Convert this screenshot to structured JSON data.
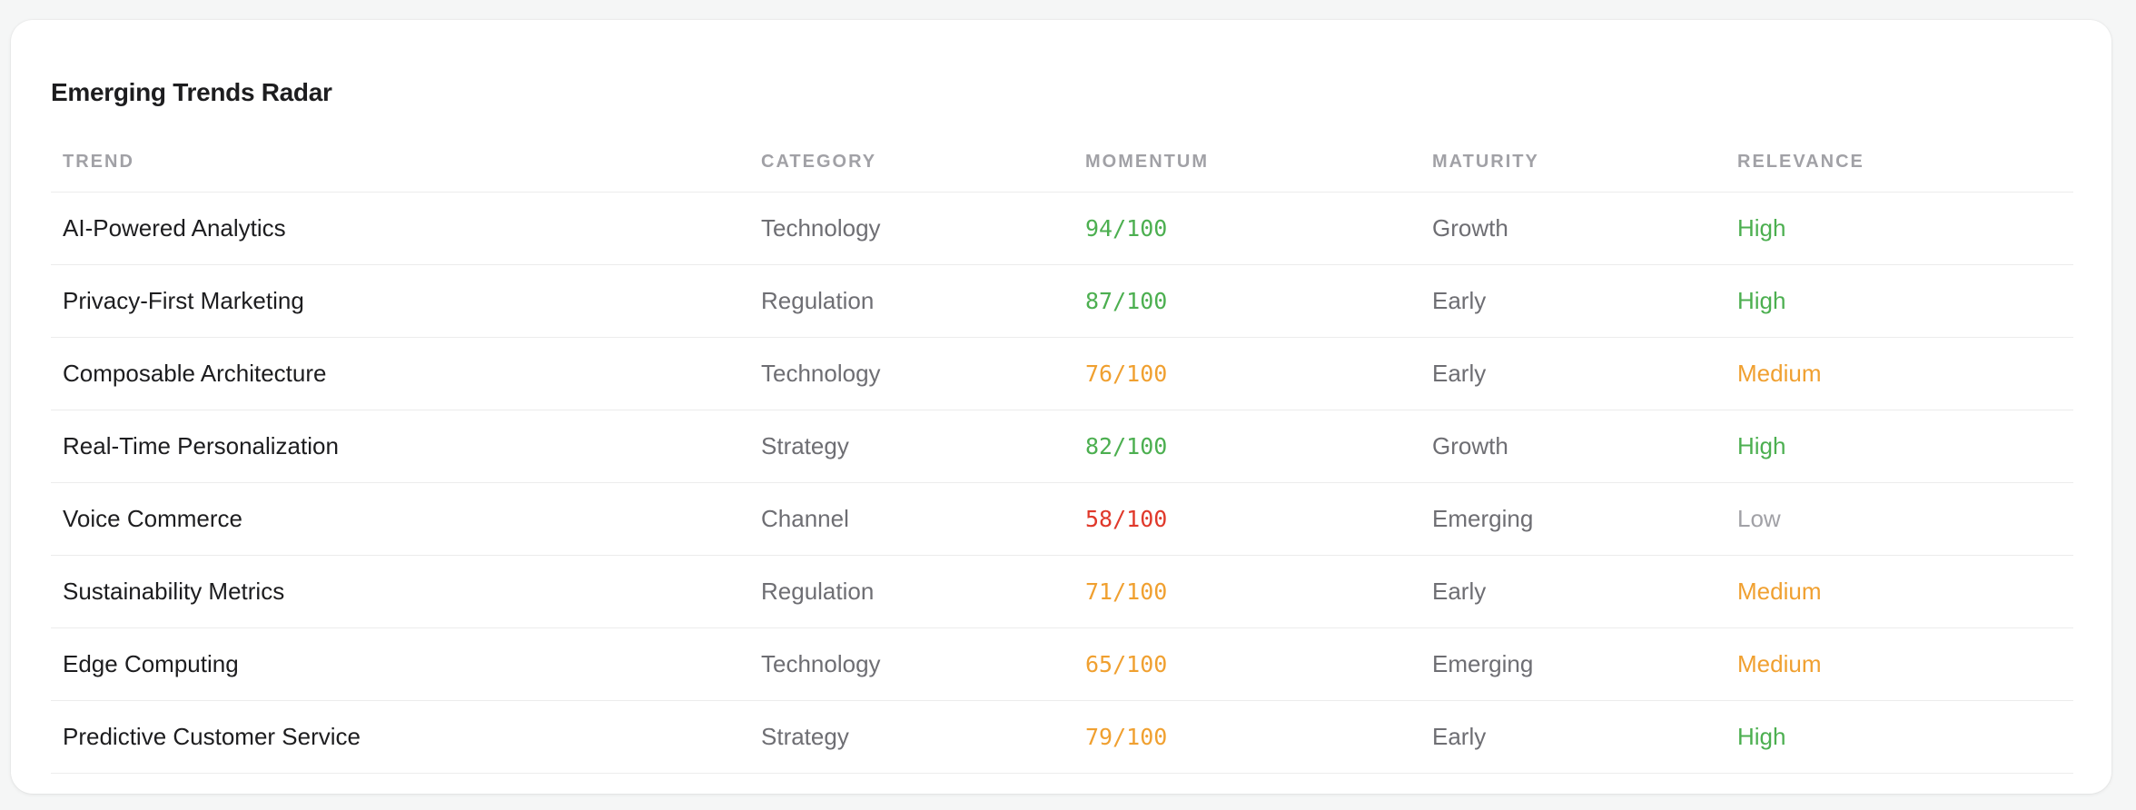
{
  "title": "Emerging Trends Radar",
  "columns": [
    "TREND",
    "CATEGORY",
    "MOMENTUM",
    "MATURITY",
    "RELEVANCE"
  ],
  "colors": {
    "high": "#4caf50",
    "medium": "#f0a030",
    "low": "#a1a1a6",
    "momentum_high": "#4caf50",
    "momentum_medium": "#f0a030",
    "momentum_low": "#e0392b"
  },
  "rows": [
    {
      "trend": "AI-Powered Analytics",
      "category": "Technology",
      "momentum": "94/100",
      "momentum_level": "green",
      "maturity": "Growth",
      "relevance": "High",
      "relevance_level": "green"
    },
    {
      "trend": "Privacy-First Marketing",
      "category": "Regulation",
      "momentum": "87/100",
      "momentum_level": "green",
      "maturity": "Early",
      "relevance": "High",
      "relevance_level": "green"
    },
    {
      "trend": "Composable Architecture",
      "category": "Technology",
      "momentum": "76/100",
      "momentum_level": "orange",
      "maturity": "Early",
      "relevance": "Medium",
      "relevance_level": "orange"
    },
    {
      "trend": "Real-Time Personalization",
      "category": "Strategy",
      "momentum": "82/100",
      "momentum_level": "green",
      "maturity": "Growth",
      "relevance": "High",
      "relevance_level": "green"
    },
    {
      "trend": "Voice Commerce",
      "category": "Channel",
      "momentum": "58/100",
      "momentum_level": "red",
      "maturity": "Emerging",
      "relevance": "Low",
      "relevance_level": "gray"
    },
    {
      "trend": "Sustainability Metrics",
      "category": "Regulation",
      "momentum": "71/100",
      "momentum_level": "orange",
      "maturity": "Early",
      "relevance": "Medium",
      "relevance_level": "orange"
    },
    {
      "trend": "Edge Computing",
      "category": "Technology",
      "momentum": "65/100",
      "momentum_level": "orange",
      "maturity": "Emerging",
      "relevance": "Medium",
      "relevance_level": "orange"
    },
    {
      "trend": "Predictive Customer Service",
      "category": "Strategy",
      "momentum": "79/100",
      "momentum_level": "orange",
      "maturity": "Early",
      "relevance": "High",
      "relevance_level": "green"
    }
  ]
}
